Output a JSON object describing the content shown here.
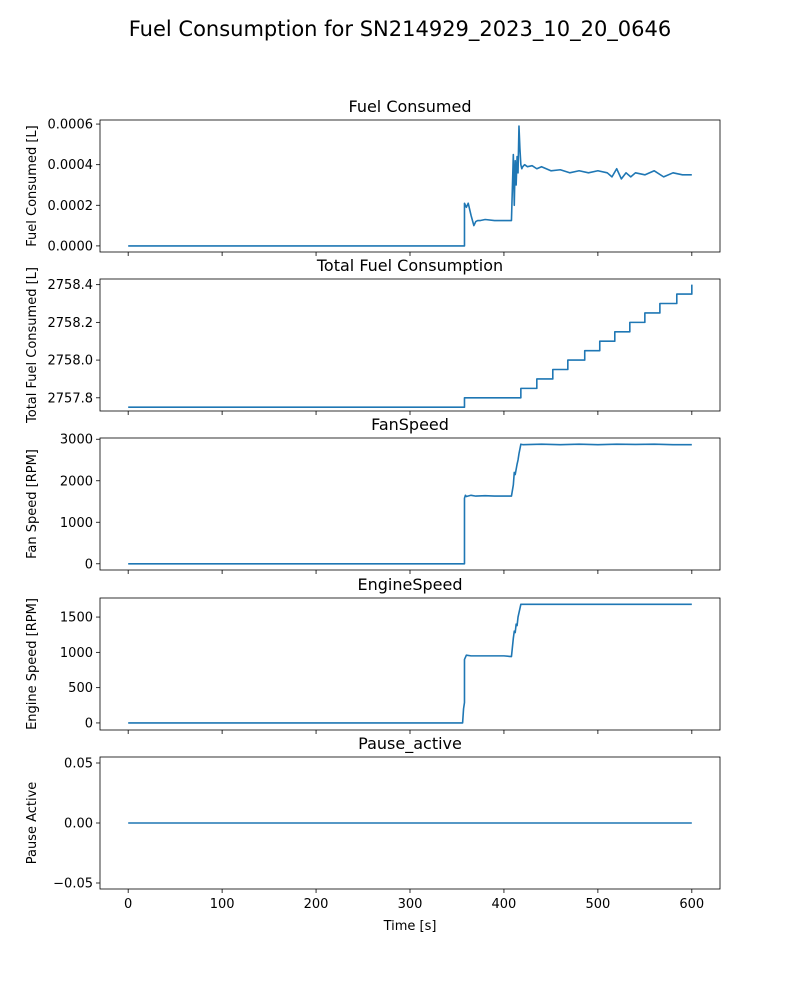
{
  "figure": {
    "title": "Fuel Consumption for SN214929_2023_10_20_0646",
    "line_color": "#1f77b4",
    "xlabel": "Time [s]"
  },
  "chart_data": [
    {
      "type": "line",
      "title": "Fuel Consumed",
      "ylabel": "Fuel Consumed [L]",
      "xlim": [
        -30,
        630
      ],
      "ylim": [
        -3e-05,
        0.00062
      ],
      "yticks": [
        0,
        0.0002,
        0.0004,
        0.0006
      ],
      "yticklabels": [
        "0.0000",
        "0.0002",
        "0.0004",
        "0.0006"
      ],
      "xticks": [
        0,
        100,
        200,
        300,
        400,
        500,
        600
      ],
      "show_xticklabels": false,
      "x": [
        0,
        358,
        358,
        359,
        360,
        362,
        365,
        368,
        370,
        372,
        375,
        380,
        390,
        400,
        408,
        410,
        411,
        412,
        413,
        414,
        415,
        416,
        417,
        418,
        419,
        420,
        422,
        425,
        430,
        435,
        440,
        450,
        460,
        470,
        480,
        490,
        500,
        510,
        515,
        520,
        525,
        530,
        535,
        540,
        550,
        560,
        570,
        580,
        590,
        600
      ],
      "y": [
        0,
        0,
        0.00021,
        0.0002,
        0.00019,
        0.00021,
        0.00015,
        0.0001,
        0.00012,
        0.000125,
        0.000125,
        0.00013,
        0.000125,
        0.000125,
        0.000125,
        0.00045,
        0.0002,
        0.00042,
        0.0003,
        0.00044,
        0.00036,
        0.00059,
        0.00048,
        0.0004,
        0.00038,
        0.00039,
        0.0004,
        0.00039,
        0.000395,
        0.00038,
        0.00039,
        0.00037,
        0.000375,
        0.00036,
        0.00037,
        0.00036,
        0.00037,
        0.00036,
        0.00034,
        0.00038,
        0.00033,
        0.00036,
        0.00034,
        0.00036,
        0.00035,
        0.00037,
        0.00034,
        0.00036,
        0.00035,
        0.00035
      ]
    },
    {
      "type": "line",
      "title": "Total Fuel Consumption",
      "ylabel": "Total Fuel Consumed [L]",
      "xlim": [
        -30,
        630
      ],
      "ylim": [
        2757.73,
        2758.43
      ],
      "yticks": [
        2757.8,
        2758.0,
        2758.2,
        2758.4
      ],
      "yticklabels": [
        "2757.8",
        "2758.0",
        "2758.2",
        "2758.4"
      ],
      "xticks": [
        0,
        100,
        200,
        300,
        400,
        500,
        600
      ],
      "show_xticklabels": false,
      "x": [
        0,
        358,
        358,
        418,
        418,
        435,
        435,
        452,
        452,
        468,
        468,
        486,
        486,
        502,
        502,
        518,
        518,
        534,
        534,
        550,
        550,
        566,
        566,
        584,
        584,
        600,
        600
      ],
      "y": [
        2757.75,
        2757.75,
        2757.8,
        2757.8,
        2757.85,
        2757.85,
        2757.9,
        2757.9,
        2757.95,
        2757.95,
        2758.0,
        2758.0,
        2758.05,
        2758.05,
        2758.1,
        2758.1,
        2758.15,
        2758.15,
        2758.2,
        2758.2,
        2758.25,
        2758.25,
        2758.3,
        2758.3,
        2758.35,
        2758.35,
        2758.4
      ]
    },
    {
      "type": "line",
      "title": "FanSpeed",
      "ylabel": "Fan Speed [RPM]",
      "xlim": [
        -30,
        630
      ],
      "ylim": [
        -150,
        3030
      ],
      "yticks": [
        0,
        1000,
        2000,
        3000
      ],
      "yticklabels": [
        "0",
        "1000",
        "2000",
        "3000"
      ],
      "xticks": [
        0,
        100,
        200,
        300,
        400,
        500,
        600
      ],
      "show_xticklabels": false,
      "x": [
        0,
        358,
        358,
        359,
        360,
        365,
        370,
        380,
        390,
        400,
        408,
        410,
        411,
        412,
        414,
        415,
        416,
        418,
        420,
        440,
        460,
        480,
        500,
        520,
        540,
        560,
        580,
        600
      ],
      "y": [
        0,
        0,
        1580,
        1650,
        1620,
        1650,
        1630,
        1640,
        1630,
        1630,
        1630,
        1900,
        2200,
        2150,
        2400,
        2500,
        2650,
        2880,
        2870,
        2880,
        2870,
        2880,
        2870,
        2880,
        2875,
        2880,
        2870,
        2870
      ]
    },
    {
      "type": "line",
      "title": "EngineSpeed",
      "ylabel": "Engine Speed [RPM]",
      "xlim": [
        -30,
        630
      ],
      "ylim": [
        -100,
        1770
      ],
      "yticks": [
        0,
        500,
        1000,
        1500
      ],
      "yticklabels": [
        "0",
        "500",
        "1000",
        "1500"
      ],
      "xticks": [
        0,
        100,
        200,
        300,
        400,
        500,
        600
      ],
      "show_xticklabels": false,
      "x": [
        0,
        356,
        357,
        358,
        358,
        360,
        365,
        370,
        380,
        390,
        400,
        408,
        410,
        411,
        412,
        413,
        414,
        415,
        418,
        420,
        440,
        460,
        480,
        500,
        520,
        540,
        560,
        580,
        600
      ],
      "y": [
        0,
        0,
        200,
        290,
        900,
        960,
        950,
        950,
        950,
        950,
        950,
        940,
        1200,
        1300,
        1280,
        1400,
        1380,
        1500,
        1680,
        1680,
        1680,
        1680,
        1680,
        1680,
        1680,
        1680,
        1680,
        1680,
        1680
      ]
    },
    {
      "type": "line",
      "title": "Pause_active",
      "ylabel": "Pause Active",
      "xlim": [
        -30,
        630
      ],
      "ylim": [
        -0.055,
        0.055
      ],
      "yticks": [
        -0.05,
        0,
        0.05
      ],
      "yticklabels": [
        "−0.05",
        "0.00",
        "0.05"
      ],
      "xticks": [
        0,
        100,
        200,
        300,
        400,
        500,
        600
      ],
      "show_xticklabels": true,
      "xticklabels": [
        "0",
        "100",
        "200",
        "300",
        "400",
        "500",
        "600"
      ],
      "x": [
        0,
        600
      ],
      "y": [
        0,
        0
      ]
    }
  ]
}
